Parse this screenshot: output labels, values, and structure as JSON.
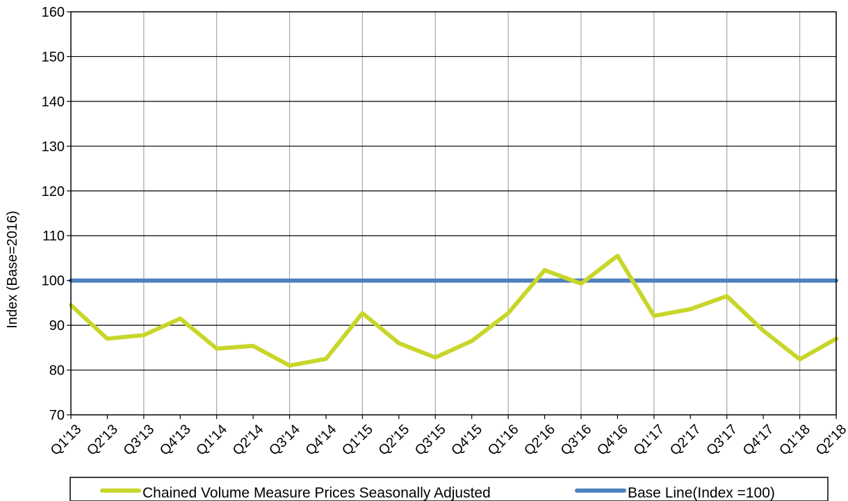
{
  "chart_data": {
    "type": "line",
    "title": "",
    "xlabel": "",
    "ylabel": "Index  (Base=2016)",
    "ylim": [
      70,
      160
    ],
    "yticks": [
      70,
      80,
      90,
      100,
      110,
      120,
      130,
      140,
      150,
      160
    ],
    "grid": true,
    "legend_position": "bottom",
    "categories": [
      "Q1'13",
      "Q2'13",
      "Q3'13",
      "Q4'13",
      "Q1'14",
      "Q2'14",
      "Q3'14",
      "Q4'14",
      "Q1'15",
      "Q2'15",
      "Q3'15",
      "Q4'15",
      "Q1'16",
      "Q2'16",
      "Q3'16",
      "Q4'16",
      "Q1'17",
      "Q2'17",
      "Q3'17",
      "Q4'17",
      "Q1'18",
      "Q2'18"
    ],
    "series": [
      {
        "name": "Chained Volume Measure Prices Seasonally Adjusted",
        "color": "#c8d62a",
        "values": [
          94.5,
          87.0,
          87.8,
          91.5,
          84.8,
          85.4,
          81.0,
          82.5,
          92.7,
          86.0,
          82.8,
          86.5,
          92.7,
          102.3,
          99.3,
          105.5,
          92.1,
          93.6,
          96.5,
          88.8,
          82.4,
          87.0
        ]
      },
      {
        "name": "Base Line(Index =100)",
        "color": "#4f81bd",
        "values": [
          100,
          100,
          100,
          100,
          100,
          100,
          100,
          100,
          100,
          100,
          100,
          100,
          100,
          100,
          100,
          100,
          100,
          100,
          100,
          100,
          100,
          100
        ]
      }
    ]
  }
}
